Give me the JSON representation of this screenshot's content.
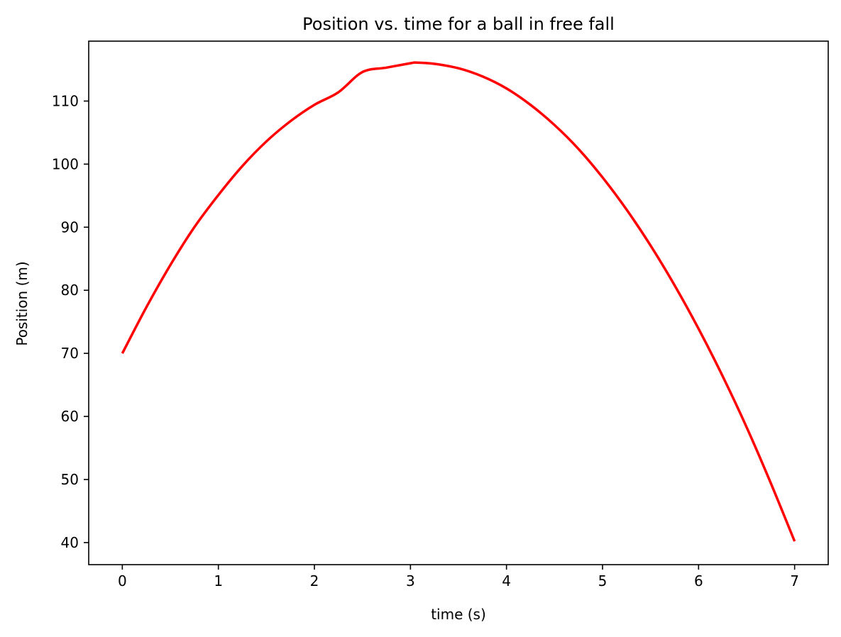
{
  "chart_data": {
    "type": "line",
    "title": "Position vs. time for a ball in free fall",
    "xlabel": "time (s)",
    "ylabel": "Position (m)",
    "xlim": [
      -0.35,
      7.35
    ],
    "ylim": [
      36.5,
      119.5
    ],
    "xticks": [
      0,
      1,
      2,
      3,
      4,
      5,
      6,
      7
    ],
    "xtick_labels": [
      "0",
      "1",
      "2",
      "3",
      "4",
      "5",
      "6",
      "7"
    ],
    "yticks": [
      40,
      50,
      60,
      70,
      80,
      90,
      100,
      110
    ],
    "ytick_labels": [
      "40",
      "50",
      "60",
      "70",
      "80",
      "90",
      "100",
      "110"
    ],
    "grid": false,
    "legend": "none",
    "series": [
      {
        "color": "#ff0000",
        "x": [
          0,
          0.25,
          0.5,
          0.75,
          1,
          1.25,
          1.5,
          1.75,
          2,
          2.25,
          2.5,
          2.75,
          3,
          3.06,
          3.25,
          3.5,
          3.75,
          4,
          4.25,
          4.5,
          4.75,
          5,
          5.25,
          5.5,
          5.75,
          6,
          6.25,
          6.5,
          6.75,
          7
        ],
        "y": [
          70.0,
          77.3,
          84.0,
          90.0,
          95.1,
          99.7,
          103.6,
          106.8,
          109.4,
          111.4,
          114.6,
          115.3,
          116.0,
          116.1,
          115.9,
          115.2,
          113.9,
          112.0,
          109.4,
          106.2,
          102.4,
          97.9,
          92.8,
          87.1,
          80.8,
          73.9,
          66.4,
          58.3,
          49.5,
          40.2
        ]
      }
    ]
  }
}
